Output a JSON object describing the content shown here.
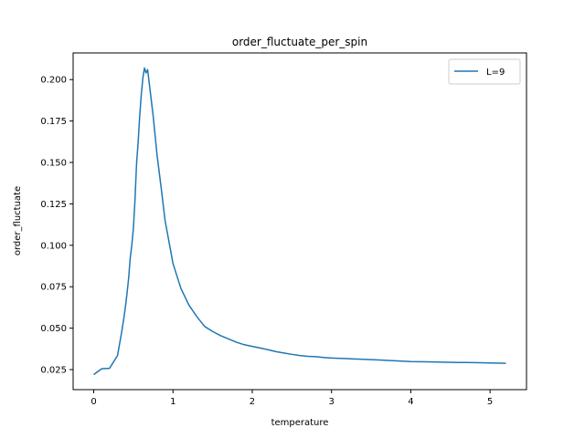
{
  "chart_data": {
    "type": "line",
    "title": "order_fluctuate_per_spin",
    "xlabel": "temperature",
    "ylabel": "order_fluctuate",
    "xlim": [
      -0.26,
      5.46
    ],
    "ylim": [
      0.0129,
      0.2161
    ],
    "xticks": [
      0,
      1,
      2,
      3,
      4,
      5
    ],
    "yticks": [
      0.025,
      0.05,
      0.075,
      0.1,
      0.125,
      0.15,
      0.175,
      0.2
    ],
    "ytick_labels": [
      "0.025",
      "0.050",
      "0.075",
      "0.100",
      "0.125",
      "0.150",
      "0.175",
      "0.200"
    ],
    "grid": false,
    "legend_position": "top-right",
    "series": [
      {
        "name": "L=9",
        "color": "#1f77b4",
        "x": [
          0.0,
          0.1,
          0.2,
          0.3,
          0.35,
          0.38,
          0.4,
          0.42,
          0.44,
          0.46,
          0.48,
          0.5,
          0.52,
          0.54,
          0.56,
          0.58,
          0.6,
          0.62,
          0.64,
          0.66,
          0.68,
          0.7,
          0.75,
          0.8,
          0.85,
          0.9,
          1.0,
          1.1,
          1.2,
          1.3,
          1.4,
          1.5,
          1.6,
          1.7,
          1.8,
          1.9,
          2.0,
          2.1,
          2.2,
          2.3,
          2.4,
          2.5,
          2.6,
          2.7,
          2.8,
          2.9,
          3.0,
          3.2,
          3.4,
          3.6,
          3.8,
          4.0,
          4.2,
          4.4,
          4.6,
          4.8,
          5.0,
          5.2
        ],
        "y": [
          0.022,
          0.0255,
          0.0258,
          0.0335,
          0.047,
          0.056,
          0.063,
          0.071,
          0.08,
          0.092,
          0.1,
          0.11,
          0.127,
          0.149,
          0.162,
          0.178,
          0.191,
          0.201,
          0.207,
          0.204,
          0.206,
          0.198,
          0.178,
          0.154,
          0.135,
          0.115,
          0.089,
          0.074,
          0.064,
          0.057,
          0.051,
          0.048,
          0.0455,
          0.0435,
          0.0415,
          0.04,
          0.039,
          0.038,
          0.037,
          0.0358,
          0.035,
          0.0342,
          0.0335,
          0.033,
          0.0328,
          0.0323,
          0.032,
          0.0316,
          0.0312,
          0.0308,
          0.0303,
          0.0298,
          0.0297,
          0.0295,
          0.0293,
          0.0292,
          0.029,
          0.0288
        ]
      }
    ]
  }
}
